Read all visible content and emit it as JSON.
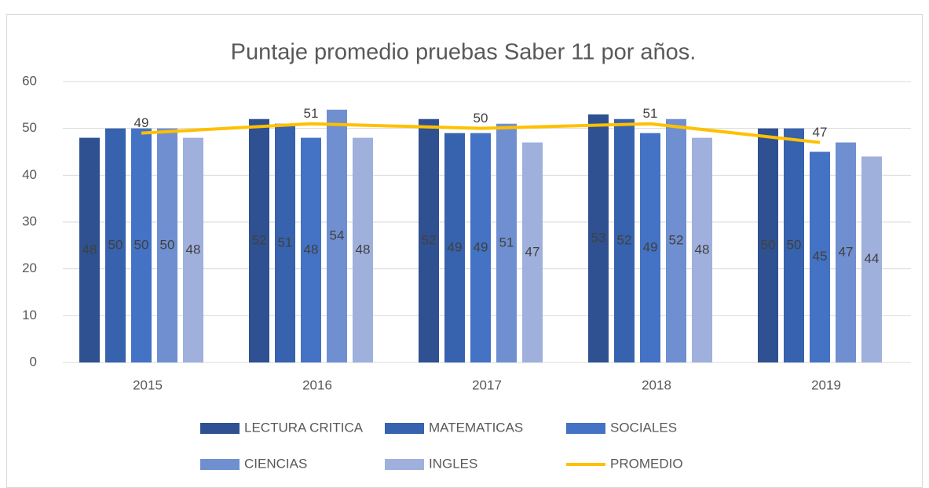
{
  "chart_data": {
    "type": "bar",
    "title": "Puntaje promedio pruebas Saber 11 por años.",
    "categories": [
      "2015",
      "2016",
      "2017",
      "2018",
      "2019"
    ],
    "series": [
      {
        "name": "LECTURA CRITICA",
        "color": "#2f5191",
        "values": [
          48,
          52,
          52,
          53,
          50
        ]
      },
      {
        "name": "MATEMATICAS",
        "color": "#3762ad",
        "values": [
          50,
          51,
          49,
          52,
          50
        ]
      },
      {
        "name": "SOCIALES",
        "color": "#4472c4",
        "values": [
          50,
          48,
          49,
          49,
          45
        ]
      },
      {
        "name": "CIENCIAS",
        "color": "#6f8fd0",
        "values": [
          50,
          54,
          51,
          52,
          47
        ]
      },
      {
        "name": "INGLES",
        "color": "#9fb0dc",
        "values": [
          48,
          48,
          47,
          48,
          44
        ]
      },
      {
        "name": "PROMEDIO",
        "color": "#ffc000",
        "type": "line",
        "values": [
          49,
          51,
          50,
          51,
          47
        ]
      }
    ],
    "ylim": [
      0,
      60
    ],
    "yticks": [
      0,
      10,
      20,
      30,
      40,
      50,
      60
    ],
    "grid": true,
    "legend": "bottom"
  }
}
